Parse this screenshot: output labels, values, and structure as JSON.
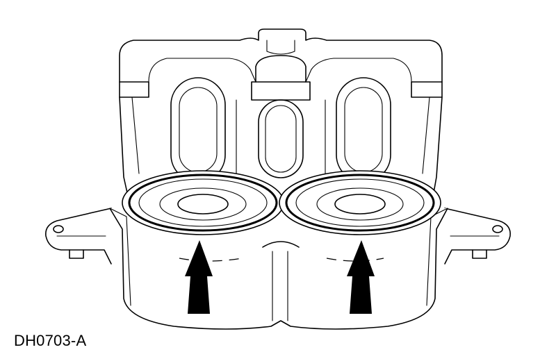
{
  "figure": {
    "id_label": "DH0703-A",
    "subject": "brake-caliper-with-two-pistons",
    "arrow_count": 2,
    "colors": {
      "line": "#000000",
      "background": "#ffffff"
    }
  }
}
